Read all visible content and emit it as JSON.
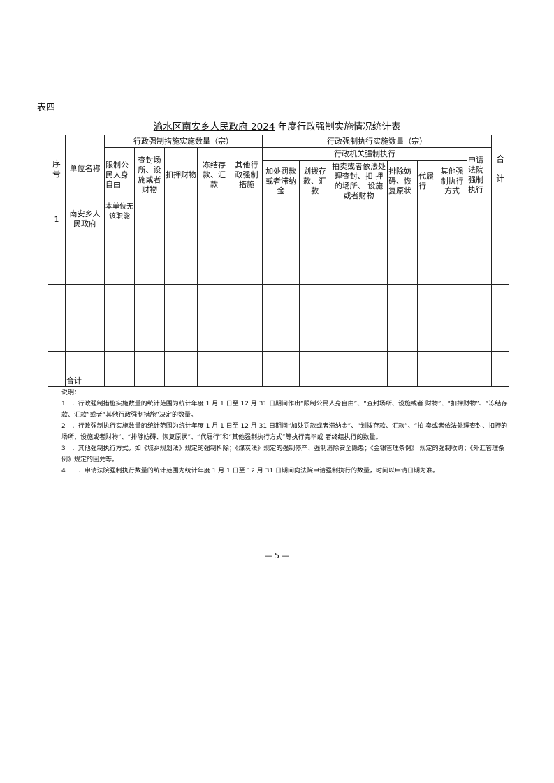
{
  "label": "表四",
  "title": {
    "unit": "渝水区南安乡人民政府 2024",
    "rest": " 年度行政强制实施情况统计表"
  },
  "headers": {
    "seq": "序号",
    "unit": "单位名称",
    "measures": "行政强制措施实施数量（宗）",
    "execution": "行政强制执行实施数量（宗）",
    "agency": "行政机关强制执行",
    "m": [
      "限制公民人身自由",
      "查封场所、设 施或者财物",
      "扣押财物",
      "冻结存款、汇 款",
      "其他行政强制措施"
    ],
    "e": [
      "加处罚款或者滞纳金",
      "划拨存款、汇款",
      "拍卖或者依法处理查封、扣 押的场所、 设施或者财物",
      "排除妨碍、恢复原状",
      "代履行",
      "其他强制执行方式"
    ],
    "court": "申请法院强制执行",
    "total": "合计"
  },
  "rows": [
    {
      "seq": "1",
      "unit": "南安乡人民政府",
      "note": "本单位无该职能"
    }
  ],
  "total_row": "合计",
  "notes": {
    "heading": "说明：",
    "items": [
      "1　．行政强制措施实施数量的统计范围为统计年度 1 月 1 日至 12 月 31 日期间作出“限制公民人身自由”、“查封场所、设施或者 财物”、“扣押财物”、“冻结存款、汇款”或者“其他行政强制措施”决定的数量。",
      "2　．行政强制执行实施数量的统计范围为统计年度 1 月 1 日至 12 月 31 日期间“加处罚款或者滞纳金”、“划拨存款、汇款”、“拍 卖或者依法处理查封、扣押的场所、设施或者财物”、“排除妨碍、恢复原状”、“代履行”和“其他强制执行方式”等执行完毕或 者终结执行的数量。",
      "3　．其他强制执行方式，如《城乡规划法》规定的强制拆除；《煤炭法》规定的强制停产、强制消除安全隐患；《金银管理条例》 规定的强制收购；《外汇管理条例》规定的回兑等。",
      "4　　．申请法院强制执行数量的统计范围为统计年度 1 月 1 日至 12 月 31 日期间向法院申请强制执行的数量，时间以申请日期为准。"
    ]
  },
  "page_number": "— 5 —"
}
